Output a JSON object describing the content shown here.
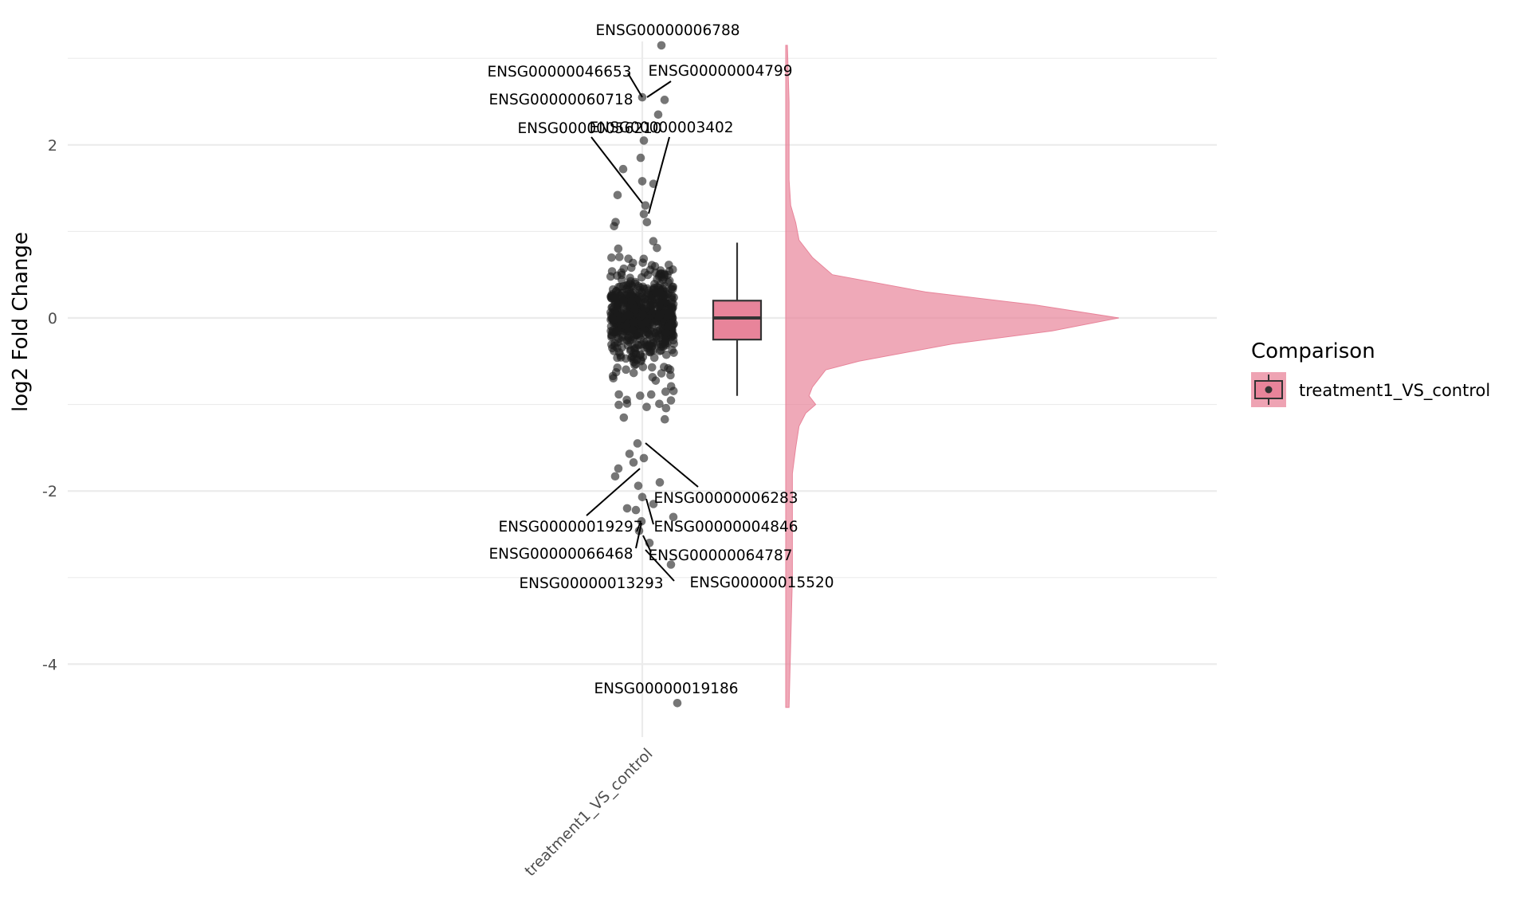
{
  "chart_data": {
    "type": "scatter",
    "subtype": "raincloud (jittered points + boxplot + half-violin)",
    "title": "",
    "xlabel": "",
    "ylabel": "log2 Fold Change",
    "categories": [
      "treatment1_VS_control"
    ],
    "ylim": [
      -4.8,
      3.2
    ],
    "y_ticks": [
      2,
      0,
      -2,
      -4
    ],
    "grid": true,
    "legend": {
      "title": "Comparison",
      "placement": "right",
      "entries": [
        {
          "label": "treatment1_VS_control",
          "color": "#e8849a"
        }
      ]
    },
    "colors": {
      "fill": "#e8849a",
      "violin": "#e8849a",
      "points": "#1a1a1a",
      "box_line": "#333333"
    },
    "boxplot": {
      "q1": -0.25,
      "median": 0.0,
      "q3": 0.2,
      "whisker_low": -0.9,
      "whisker_high": 0.87
    },
    "n_points_approx": 800,
    "density_points": [
      [
        -4.5,
        0.01
      ],
      [
        -3.0,
        0.02
      ],
      [
        -2.5,
        0.02
      ],
      [
        -2.0,
        0.02
      ],
      [
        -1.8,
        0.02
      ],
      [
        -1.5,
        0.03
      ],
      [
        -1.25,
        0.04
      ],
      [
        -1.1,
        0.06
      ],
      [
        -1.0,
        0.09
      ],
      [
        -0.9,
        0.07
      ],
      [
        -0.8,
        0.08
      ],
      [
        -0.6,
        0.12
      ],
      [
        -0.5,
        0.22
      ],
      [
        -0.3,
        0.5
      ],
      [
        -0.15,
        0.8
      ],
      [
        0.0,
        1.0
      ],
      [
        0.15,
        0.75
      ],
      [
        0.3,
        0.42
      ],
      [
        0.5,
        0.14
      ],
      [
        0.7,
        0.08
      ],
      [
        0.9,
        0.04
      ],
      [
        1.1,
        0.03
      ],
      [
        1.3,
        0.015
      ],
      [
        1.6,
        0.01
      ],
      [
        2.5,
        0.01
      ],
      [
        3.15,
        0.005
      ]
    ],
    "labeled_points": [
      {
        "gene": "ENSG00000006788",
        "y": 3.15
      },
      {
        "gene": "ENSG00000046653",
        "y": 2.55
      },
      {
        "gene": "ENSG00000004799",
        "y": 2.52
      },
      {
        "gene": "ENSG00000060718",
        "y": 2.35
      },
      {
        "gene": "ENSG00000056210",
        "y": 1.3
      },
      {
        "gene": "ENSG00000003402",
        "y": 1.2
      },
      {
        "gene": "ENSG00000006283",
        "y": -1.45
      },
      {
        "gene": "ENSG00000019297",
        "y": -1.75
      },
      {
        "gene": "ENSG00000004846",
        "y": -1.95
      },
      {
        "gene": "ENSG00000066468",
        "y": -2.35
      },
      {
        "gene": "ENSG00000064787",
        "y": -2.6
      },
      {
        "gene": "ENSG00000013293",
        "y": -2.4
      },
      {
        "gene": "ENSG00000015520",
        "y": -2.85
      },
      {
        "gene": "ENSG00000019186",
        "y": -4.45
      }
    ]
  }
}
